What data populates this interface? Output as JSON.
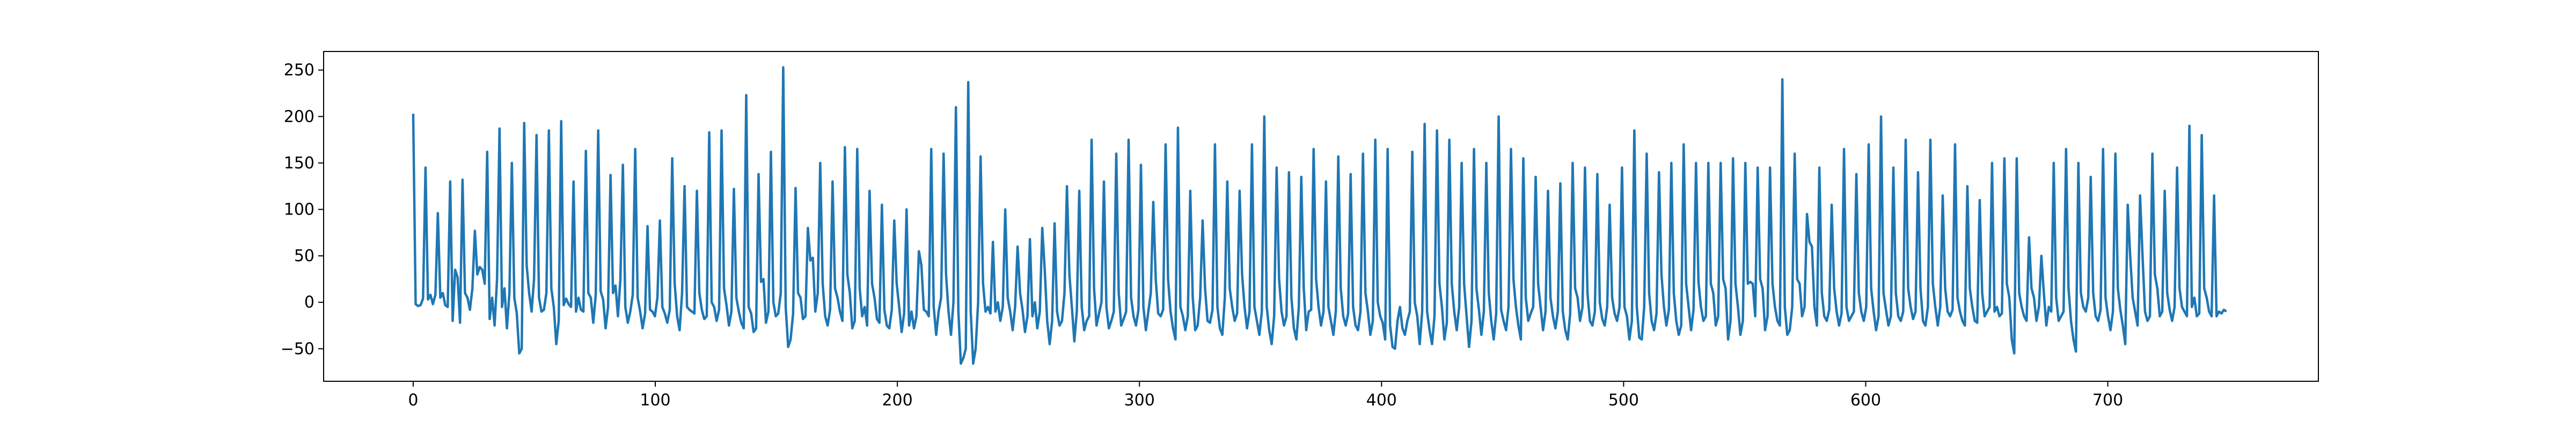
{
  "chart_data": {
    "type": "line",
    "title": "",
    "xlabel": "",
    "ylabel": "",
    "xlim": [
      -37,
      787
    ],
    "ylim": [
      -85,
      270
    ],
    "xticks": [
      0,
      100,
      200,
      300,
      400,
      500,
      600,
      700
    ],
    "yticks": [
      -50,
      0,
      50,
      100,
      150,
      200,
      250
    ],
    "grid": false,
    "legend": "none",
    "line_color": "#1f77b4",
    "x_start": 0,
    "x_end": 749,
    "series": [
      {
        "values": [
          203,
          -2,
          -4,
          -3,
          4,
          145,
          3,
          8,
          -2,
          8,
          96,
          5,
          10,
          -3,
          -5,
          130,
          -20,
          35,
          27,
          -22,
          132,
          10,
          5,
          -8,
          15,
          77,
          30,
          38,
          35,
          20,
          162,
          -18,
          5,
          -25,
          25,
          187,
          -5,
          15,
          -28,
          10,
          150,
          5,
          -12,
          -55,
          -50,
          193,
          40,
          10,
          -10,
          25,
          180,
          5,
          -10,
          -8,
          10,
          185,
          15,
          -5,
          -45,
          -20,
          195,
          -3,
          4,
          -2,
          -5,
          130,
          -10,
          5,
          -8,
          -10,
          163,
          10,
          5,
          -22,
          8,
          185,
          12,
          3,
          -28,
          -5,
          137,
          10,
          18,
          -15,
          25,
          148,
          -5,
          -22,
          -10,
          8,
          165,
          5,
          -10,
          -28,
          -12,
          82,
          -8,
          -10,
          -15,
          5,
          88,
          -5,
          -12,
          -22,
          -8,
          155,
          20,
          -15,
          -30,
          10,
          125,
          -5,
          -8,
          -10,
          -12,
          120,
          10,
          -8,
          -18,
          -15,
          183,
          0,
          -5,
          -20,
          -8,
          185,
          15,
          -3,
          -25,
          -10,
          122,
          5,
          -10,
          -22,
          -28,
          223,
          -5,
          -12,
          -32,
          -28,
          138,
          22,
          25,
          -22,
          -10,
          162,
          0,
          -15,
          -12,
          10,
          253,
          -5,
          -48,
          -40,
          -12,
          123,
          10,
          5,
          -18,
          -15,
          80,
          45,
          48,
          -10,
          10,
          150,
          20,
          -15,
          -25,
          -8,
          130,
          15,
          5,
          -10,
          -20,
          167,
          30,
          10,
          -28,
          -20,
          165,
          15,
          -15,
          -5,
          -25,
          120,
          20,
          5,
          -18,
          -22,
          105,
          -8,
          -25,
          -28,
          -8,
          88,
          20,
          -5,
          -32,
          -12,
          100,
          -25,
          -10,
          -28,
          -15,
          55,
          40,
          -8,
          -10,
          -15,
          165,
          -5,
          -35,
          -10,
          5,
          160,
          30,
          -10,
          -35,
          0,
          210,
          -10,
          -66,
          -60,
          -50,
          237,
          -10,
          -66,
          -50,
          0,
          157,
          20,
          -10,
          -5,
          -12,
          65,
          -10,
          0,
          -20,
          -5,
          100,
          5,
          -10,
          -30,
          -5,
          60,
          10,
          -8,
          -32,
          -15,
          68,
          -15,
          0,
          -28,
          -10,
          80,
          35,
          -20,
          -45,
          -20,
          85,
          -10,
          -25,
          -20,
          10,
          125,
          30,
          -5,
          -42,
          -10,
          120,
          -5,
          -30,
          -20,
          -15,
          175,
          15,
          -25,
          -12,
          0,
          130,
          -5,
          -28,
          -20,
          -10,
          160,
          10,
          -25,
          -18,
          -10,
          175,
          5,
          -15,
          -25,
          -8,
          148,
          -5,
          -30,
          -10,
          10,
          108,
          25,
          -12,
          -15,
          -8,
          170,
          25,
          -10,
          -28,
          -40,
          188,
          -5,
          -15,
          -30,
          -15,
          120,
          5,
          -30,
          -25,
          5,
          88,
          15,
          -20,
          -22,
          -8,
          170,
          -5,
          -28,
          -35,
          5,
          130,
          15,
          -5,
          -20,
          -12,
          120,
          30,
          -5,
          -28,
          -10,
          170,
          -5,
          -20,
          -35,
          -10,
          200,
          -5,
          -30,
          -45,
          -15,
          145,
          25,
          -10,
          -25,
          -15,
          140,
          5,
          -28,
          -40,
          -5,
          135,
          15,
          -30,
          -10,
          -8,
          165,
          25,
          -5,
          -25,
          -10,
          130,
          -5,
          -20,
          -35,
          -10,
          157,
          15,
          -15,
          -25,
          -12,
          138,
          -5,
          -25,
          -30,
          -10,
          160,
          10,
          -10,
          -35,
          -20,
          175,
          0,
          -15,
          -22,
          -40,
          165,
          -25,
          -48,
          -50,
          -20,
          -5,
          -28,
          -35,
          -20,
          -10,
          162,
          0,
          -15,
          -45,
          -10,
          192,
          -10,
          -30,
          -45,
          -15,
          185,
          20,
          -5,
          -40,
          -22,
          175,
          20,
          -10,
          -30,
          -5,
          150,
          20,
          -15,
          -48,
          -20,
          165,
          15,
          -8,
          -35,
          -10,
          150,
          10,
          -20,
          -40,
          -12,
          200,
          -8,
          -20,
          -30,
          -5,
          165,
          25,
          -5,
          -25,
          -40,
          155,
          5,
          -20,
          -12,
          -5,
          135,
          20,
          -5,
          -30,
          -10,
          120,
          5,
          -15,
          -28,
          -10,
          128,
          -10,
          -30,
          -40,
          -12,
          150,
          15,
          5,
          -20,
          -5,
          145,
          10,
          -20,
          -25,
          -10,
          138,
          0,
          -18,
          -25,
          -5,
          105,
          5,
          -12,
          -20,
          -5,
          145,
          -5,
          -15,
          -40,
          -20,
          185,
          -5,
          -38,
          -40,
          -5,
          160,
          10,
          -20,
          -30,
          -12,
          140,
          30,
          -5,
          -25,
          -8,
          150,
          10,
          -20,
          -35,
          -25,
          170,
          20,
          -5,
          -30,
          -8,
          150,
          22,
          -5,
          -20,
          -15,
          150,
          20,
          10,
          -25,
          -15,
          150,
          25,
          15,
          -40,
          -20,
          155,
          20,
          -5,
          -35,
          -20,
          150,
          20,
          22,
          20,
          -15,
          145,
          25,
          15,
          -30,
          -15,
          145,
          20,
          -5,
          -20,
          -25,
          240,
          -5,
          -35,
          -30,
          -5,
          160,
          25,
          20,
          -15,
          -5,
          95,
          65,
          60,
          -5,
          -25,
          145,
          10,
          -15,
          -20,
          -8,
          105,
          15,
          -10,
          -25,
          -12,
          165,
          -5,
          -20,
          -15,
          -10,
          138,
          10,
          -10,
          -20,
          -5,
          170,
          15,
          -10,
          -30,
          -15,
          200,
          10,
          -8,
          -25,
          -15,
          145,
          10,
          -15,
          -20,
          -10,
          175,
          15,
          -5,
          -18,
          -10,
          140,
          15,
          -20,
          -25,
          -5,
          175,
          20,
          -5,
          -25,
          -5,
          115,
          15,
          -10,
          -15,
          -8,
          170,
          5,
          -10,
          -20,
          -25,
          125,
          15,
          -5,
          -20,
          -22,
          110,
          10,
          -15,
          -10,
          -5,
          150,
          -10,
          -5,
          -15,
          -12,
          155,
          20,
          5,
          -40,
          -55,
          155,
          10,
          -5,
          -15,
          -20,
          70,
          15,
          5,
          -20,
          -5,
          50,
          10,
          -25,
          -5,
          -10,
          150,
          5,
          -20,
          -15,
          -10,
          165,
          15,
          -20,
          -40,
          -53,
          150,
          10,
          -5,
          -10,
          5,
          135,
          10,
          -15,
          -20,
          -8,
          165,
          5,
          -15,
          -30,
          -10,
          160,
          15,
          -8,
          -25,
          -45,
          105,
          50,
          5,
          -10,
          -25,
          115,
          50,
          -10,
          -20,
          -15,
          160,
          30,
          15,
          -15,
          -10,
          120,
          10,
          -8,
          -20,
          -5,
          145,
          15,
          -5,
          -10,
          -15,
          190,
          -5,
          5,
          -15,
          -12,
          180,
          15,
          5,
          -10,
          -15,
          115,
          -15,
          -10,
          -12,
          -8,
          -10
        ]
      }
    ]
  }
}
